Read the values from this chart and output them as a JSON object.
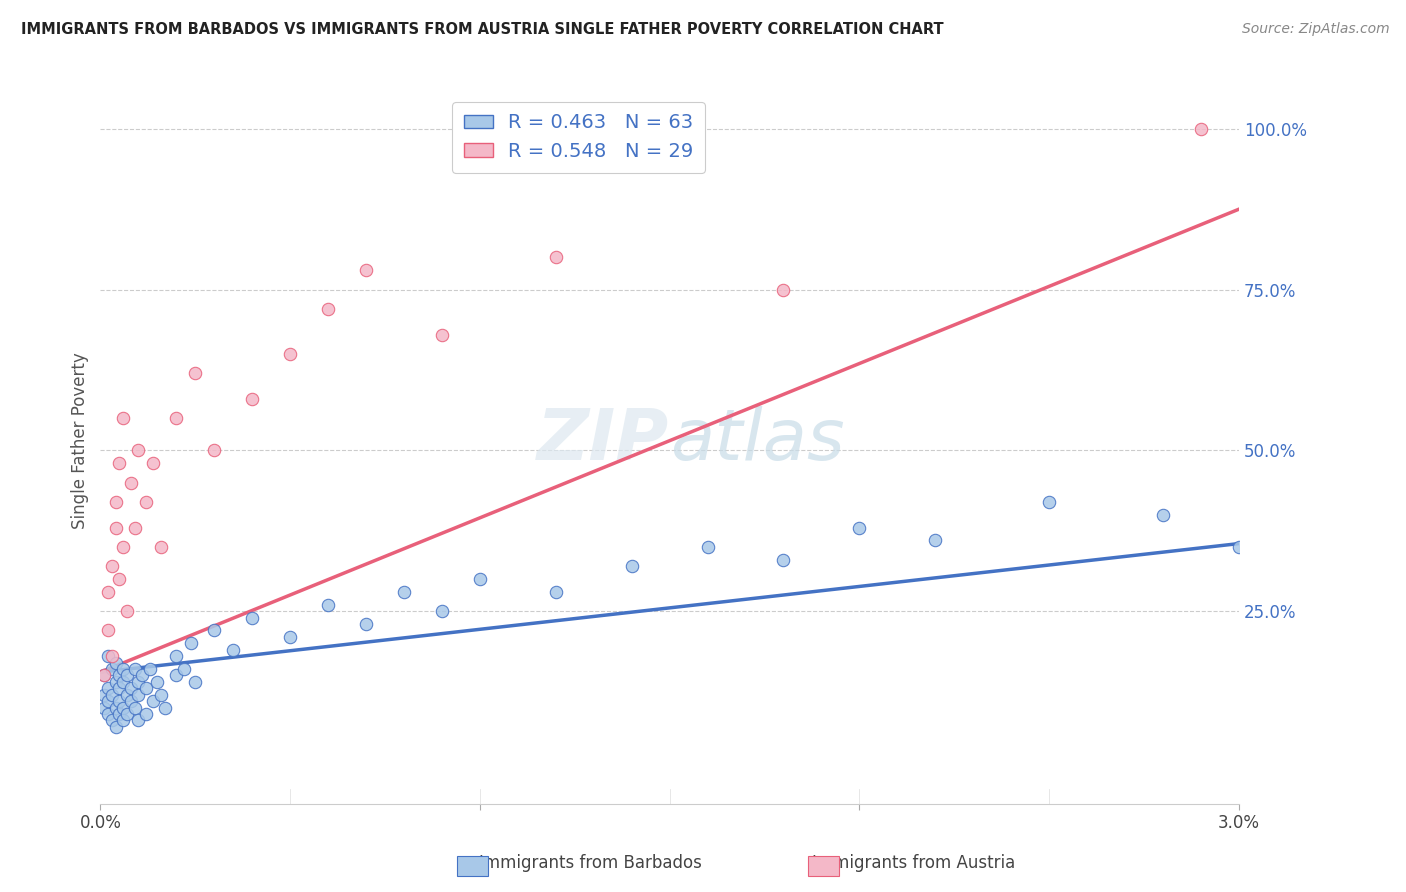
{
  "title": "IMMIGRANTS FROM BARBADOS VS IMMIGRANTS FROM AUSTRIA SINGLE FATHER POVERTY CORRELATION CHART",
  "source": "Source: ZipAtlas.com",
  "ylabel": "Single Father Poverty",
  "xlim": [
    0.0,
    0.03
  ],
  "ylim": [
    -0.05,
    1.08
  ],
  "legend1_label": "R = 0.463   N = 63",
  "legend2_label": "R = 0.548   N = 29",
  "series1_color": "#a8c8e8",
  "series2_color": "#f4b8c8",
  "trendline1_color": "#4472c4",
  "trendline2_color": "#e8607a",
  "watermark": "ZIPatlas",
  "barbados_x": [
    0.0001,
    0.0001,
    0.0001,
    0.0002,
    0.0002,
    0.0002,
    0.0002,
    0.0003,
    0.0003,
    0.0003,
    0.0004,
    0.0004,
    0.0004,
    0.0004,
    0.0005,
    0.0005,
    0.0005,
    0.0005,
    0.0006,
    0.0006,
    0.0006,
    0.0006,
    0.0007,
    0.0007,
    0.0007,
    0.0008,
    0.0008,
    0.0009,
    0.0009,
    0.001,
    0.001,
    0.001,
    0.0011,
    0.0012,
    0.0012,
    0.0013,
    0.0014,
    0.0015,
    0.0016,
    0.0017,
    0.002,
    0.002,
    0.0022,
    0.0024,
    0.0025,
    0.003,
    0.0035,
    0.004,
    0.005,
    0.006,
    0.007,
    0.008,
    0.009,
    0.01,
    0.012,
    0.014,
    0.016,
    0.018,
    0.02,
    0.022,
    0.025,
    0.028,
    0.03
  ],
  "barbados_y": [
    0.15,
    0.12,
    0.1,
    0.18,
    0.13,
    0.09,
    0.11,
    0.16,
    0.12,
    0.08,
    0.14,
    0.1,
    0.17,
    0.07,
    0.13,
    0.15,
    0.09,
    0.11,
    0.14,
    0.16,
    0.1,
    0.08,
    0.15,
    0.12,
    0.09,
    0.13,
    0.11,
    0.16,
    0.1,
    0.14,
    0.12,
    0.08,
    0.15,
    0.13,
    0.09,
    0.16,
    0.11,
    0.14,
    0.12,
    0.1,
    0.18,
    0.15,
    0.16,
    0.2,
    0.14,
    0.22,
    0.19,
    0.24,
    0.21,
    0.26,
    0.23,
    0.28,
    0.25,
    0.3,
    0.28,
    0.32,
    0.35,
    0.33,
    0.38,
    0.36,
    0.42,
    0.4,
    0.35
  ],
  "austria_x": [
    0.0001,
    0.0002,
    0.0002,
    0.0003,
    0.0003,
    0.0004,
    0.0004,
    0.0005,
    0.0005,
    0.0006,
    0.0006,
    0.0007,
    0.0008,
    0.0009,
    0.001,
    0.0012,
    0.0014,
    0.0016,
    0.002,
    0.0025,
    0.003,
    0.004,
    0.005,
    0.006,
    0.007,
    0.009,
    0.012,
    0.018,
    0.029
  ],
  "austria_y": [
    0.15,
    0.22,
    0.28,
    0.32,
    0.18,
    0.38,
    0.42,
    0.3,
    0.48,
    0.35,
    0.55,
    0.25,
    0.45,
    0.38,
    0.5,
    0.42,
    0.48,
    0.35,
    0.55,
    0.62,
    0.5,
    0.58,
    0.65,
    0.72,
    0.78,
    0.68,
    0.8,
    0.75,
    1.0
  ],
  "trendline1_x0": 0.0,
  "trendline1_y0": 0.155,
  "trendline1_x1": 0.03,
  "trendline1_y1": 0.355,
  "trendline2_x0": 0.0,
  "trendline2_y0": 0.155,
  "trendline2_x1": 0.03,
  "trendline2_y1": 0.875
}
